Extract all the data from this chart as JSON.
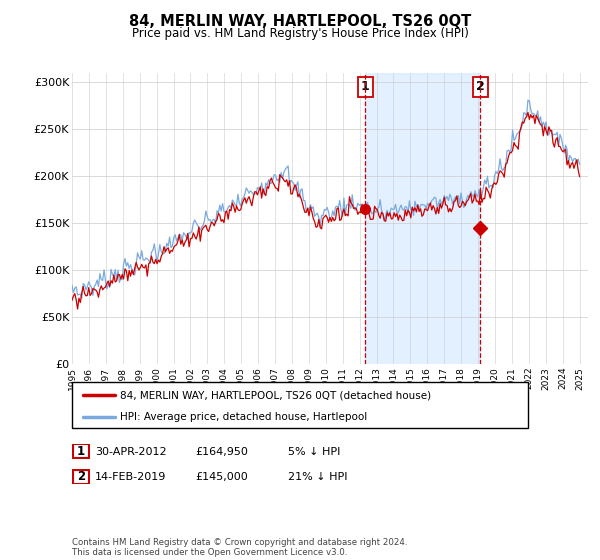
{
  "title": "84, MERLIN WAY, HARTLEPOOL, TS26 0QT",
  "subtitle": "Price paid vs. HM Land Registry's House Price Index (HPI)",
  "legend_line1": "84, MERLIN WAY, HARTLEPOOL, TS26 0QT (detached house)",
  "legend_line2": "HPI: Average price, detached house, Hartlepool",
  "annotation1_date": "30-APR-2012",
  "annotation1_price": "£164,950",
  "annotation1_hpi": "5% ↓ HPI",
  "annotation2_date": "14-FEB-2019",
  "annotation2_price": "£145,000",
  "annotation2_hpi": "21% ↓ HPI",
  "footer": "Contains HM Land Registry data © Crown copyright and database right 2024.\nThis data is licensed under the Open Government Licence v3.0.",
  "hpi_color": "#7aaadd",
  "price_color": "#cc0000",
  "annotation_color": "#cc0000",
  "bg_shaded_color": "#ddeeff",
  "ylim": [
    0,
    310000
  ],
  "yticks": [
    0,
    50000,
    100000,
    150000,
    200000,
    250000,
    300000
  ],
  "ytick_labels": [
    "£0",
    "£50K",
    "£100K",
    "£150K",
    "£200K",
    "£250K",
    "£300K"
  ],
  "sale1_x": 2012.33,
  "sale1_y": 164950,
  "sale2_x": 2019.12,
  "sale2_y": 145000,
  "xlim_left": 1995.0,
  "xlim_right": 2025.5
}
